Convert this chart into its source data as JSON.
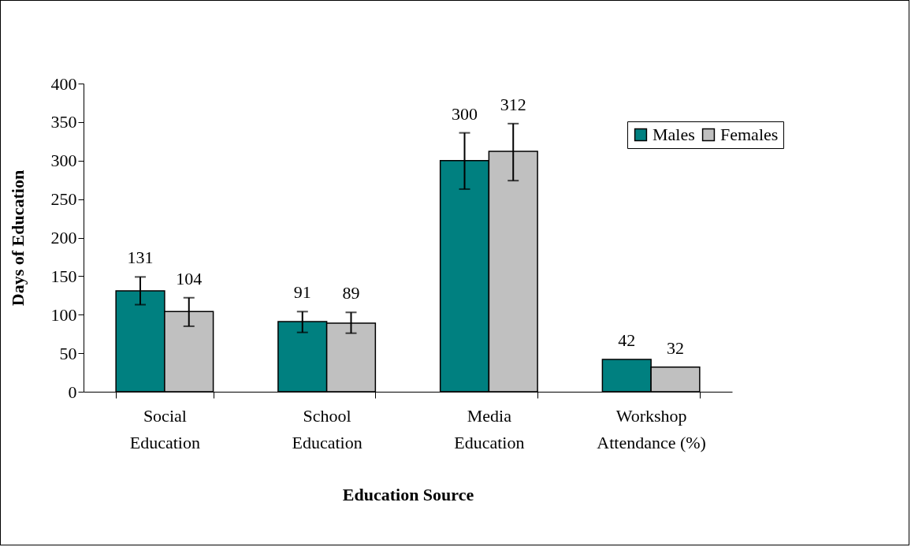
{
  "chart_data": {
    "type": "bar",
    "xlabel": "Education Source",
    "ylabel": "Days of Education",
    "categories": [
      "Social Education",
      "School Education",
      "Media Education",
      "Workshop Attendance (%)"
    ],
    "series": [
      {
        "name": "Males",
        "color": "#008080",
        "values": [
          131,
          91,
          300,
          42
        ],
        "errors": [
          [
            113,
            149
          ],
          [
            77,
            104
          ],
          [
            263,
            336
          ],
          null
        ]
      },
      {
        "name": "Females",
        "color": "#c0c0c0",
        "values": [
          104,
          89,
          312,
          32
        ],
        "errors": [
          [
            85,
            122
          ],
          [
            76,
            103
          ],
          [
            274,
            348
          ],
          null
        ]
      }
    ],
    "ylim": [
      0,
      400
    ],
    "yticks": [
      0,
      50,
      100,
      150,
      200,
      250,
      300,
      350,
      400
    ],
    "grid": false,
    "legend": "top right",
    "data_labels": true
  }
}
